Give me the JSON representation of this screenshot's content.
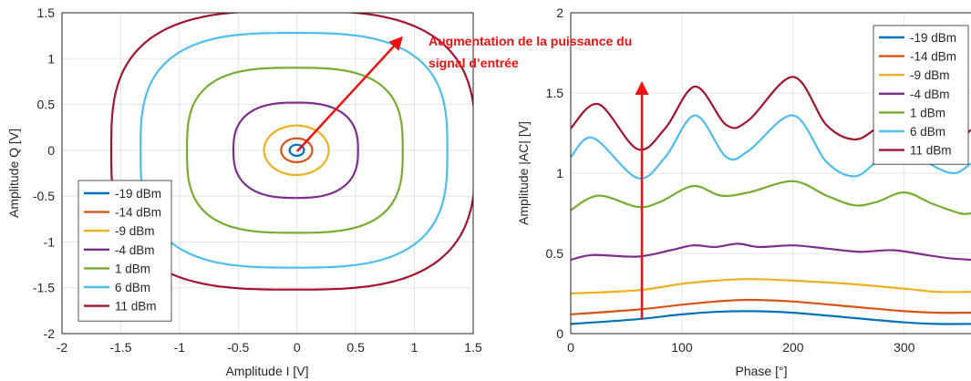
{
  "annotation": {
    "text_line1": "Augmentation de la puissance du",
    "text_line2": "signal d’entrée",
    "color": "#ee1111"
  },
  "chart_data": [
    {
      "type": "line",
      "xlabel": "Amplitude I  [V]",
      "ylabel": "Amplitude Q [V]",
      "xlim": [
        -2,
        1.5
      ],
      "ylim": [
        -2,
        1.5
      ],
      "xticks": [
        "-2",
        "-1.5",
        "-1",
        "-0.5",
        "0",
        "0.5",
        "1",
        "1.5"
      ],
      "yticks": [
        "-2",
        "-1.5",
        "-1",
        "-0.5",
        "0",
        "0.5",
        "1",
        "1.5"
      ],
      "grid": true,
      "legend_position": "bottom-left",
      "series": [
        {
          "name": "-19 dBm",
          "color": "#0072BD",
          "radius": 0.06
        },
        {
          "name": "-14 dBm",
          "color": "#D95319",
          "radius": 0.13
        },
        {
          "name": "-9 dBm",
          "color": "#EDB120",
          "radius": 0.27
        },
        {
          "name": "-4 dBm",
          "color": "#7E2F8E",
          "radius": 0.52
        },
        {
          "name": "1 dBm",
          "color": "#77AC30",
          "radius": 0.9
        },
        {
          "name": "6 dBm",
          "color": "#4DBEEE",
          "radius": 1.28
        },
        {
          "name": "11 dBm",
          "color": "#A2142F",
          "radius": 1.52
        }
      ]
    },
    {
      "type": "line",
      "xlabel": "Phase [°]",
      "ylabel": "Amplitude |AC| [V]",
      "xlim": [
        0,
        360
      ],
      "ylim": [
        0,
        2
      ],
      "xticks": [
        "0",
        "100",
        "200",
        "300"
      ],
      "yticks": [
        "0",
        "0.5",
        "1",
        "1.5",
        "2"
      ],
      "grid": true,
      "legend_position": "top-right",
      "series": [
        {
          "name": "-19 dBm",
          "color": "#0072BD",
          "x": [
            0,
            60,
            100,
            130,
            160,
            200,
            250,
            300,
            330,
            360
          ],
          "y": [
            0.06,
            0.09,
            0.12,
            0.135,
            0.14,
            0.13,
            0.1,
            0.07,
            0.06,
            0.06
          ]
        },
        {
          "name": "-14 dBm",
          "color": "#D95319",
          "x": [
            0,
            60,
            100,
            130,
            160,
            200,
            250,
            300,
            330,
            360
          ],
          "y": [
            0.12,
            0.15,
            0.18,
            0.2,
            0.21,
            0.2,
            0.17,
            0.14,
            0.13,
            0.13
          ]
        },
        {
          "name": "-9 dBm",
          "color": "#EDB120",
          "x": [
            0,
            60,
            100,
            130,
            160,
            200,
            250,
            300,
            330,
            360
          ],
          "y": [
            0.25,
            0.27,
            0.31,
            0.33,
            0.34,
            0.33,
            0.31,
            0.28,
            0.26,
            0.26
          ]
        },
        {
          "name": "-4 dBm",
          "color": "#7E2F8E",
          "x": [
            0,
            20,
            60,
            90,
            110,
            130,
            150,
            170,
            200,
            230,
            260,
            290,
            320,
            340,
            360
          ],
          "y": [
            0.46,
            0.49,
            0.48,
            0.52,
            0.55,
            0.54,
            0.56,
            0.54,
            0.55,
            0.53,
            0.51,
            0.52,
            0.49,
            0.47,
            0.46
          ]
        },
        {
          "name": "1 dBm",
          "color": "#77AC30",
          "x": [
            0,
            25,
            60,
            80,
            110,
            135,
            160,
            200,
            230,
            255,
            275,
            300,
            325,
            350,
            360
          ],
          "y": [
            0.77,
            0.86,
            0.79,
            0.82,
            0.92,
            0.86,
            0.88,
            0.95,
            0.86,
            0.8,
            0.82,
            0.88,
            0.81,
            0.75,
            0.75
          ]
        },
        {
          "name": "6 dBm",
          "color": "#4DBEEE",
          "x": [
            0,
            20,
            60,
            85,
            112,
            140,
            160,
            200,
            230,
            255,
            275,
            300,
            325,
            345,
            360
          ],
          "y": [
            1.1,
            1.22,
            0.97,
            1.1,
            1.36,
            1.1,
            1.14,
            1.36,
            1.07,
            0.98,
            1.07,
            1.18,
            1.05,
            1.0,
            1.06
          ]
        },
        {
          "name": "11 dBm",
          "color": "#A2142F",
          "x": [
            0,
            25,
            60,
            85,
            112,
            140,
            160,
            200,
            230,
            255,
            275,
            300,
            325,
            345,
            360
          ],
          "y": [
            1.28,
            1.43,
            1.15,
            1.28,
            1.54,
            1.3,
            1.33,
            1.6,
            1.3,
            1.21,
            1.28,
            1.4,
            1.25,
            1.2,
            1.27
          ]
        }
      ]
    }
  ]
}
